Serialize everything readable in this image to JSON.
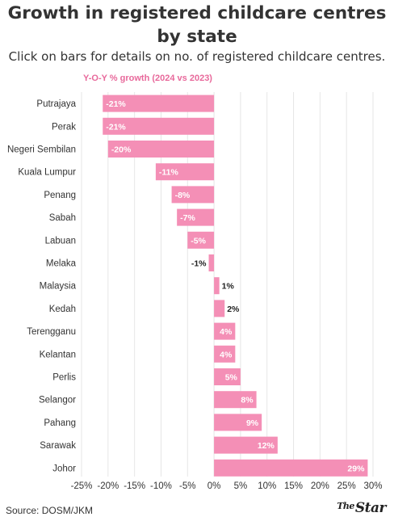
{
  "title": "Growth in registered childcare centres by state",
  "subtitle": "Click on bars for details on no. of registered childcare centres.",
  "source": "Source: DOSM/JKM",
  "brand": {
    "the": "The",
    "star": "Star"
  },
  "colors": {
    "bar": "#f48fb6",
    "legend": "#e8699b",
    "grid": "#e6e6e6"
  },
  "chart_data": {
    "type": "bar",
    "orientation": "horizontal",
    "legend": "Y-O-Y % growth (2024 vs 2023)",
    "categories": [
      "Putrajaya",
      "Perak",
      "Negeri Sembilan",
      "Kuala Lumpur",
      "Penang",
      "Sabah",
      "Labuan",
      "Melaka",
      "Malaysia",
      "Kedah",
      "Terengganu",
      "Kelantan",
      "Perlis",
      "Selangor",
      "Pahang",
      "Sarawak",
      "Johor"
    ],
    "values": [
      -21,
      -21,
      -20,
      -11,
      -8,
      -7,
      -5,
      -1,
      1,
      2,
      4,
      4,
      5,
      8,
      9,
      12,
      29
    ],
    "labels": [
      "-21%",
      "-21%",
      "-20%",
      "-11%",
      "-8%",
      "-7%",
      "-5%",
      "-1%",
      "1%",
      "2%",
      "4%",
      "4%",
      "5%",
      "8%",
      "9%",
      "12%",
      "29%"
    ],
    "xlim": [
      -25,
      30
    ],
    "ticks": [
      -25,
      -20,
      -15,
      -10,
      -5,
      0,
      5,
      10,
      15,
      20,
      25,
      30
    ],
    "tick_labels": [
      "-25%",
      "-20%",
      "-15%",
      "-10%",
      "-5%",
      "0%",
      "5%",
      "10%",
      "15%",
      "20%",
      "25%",
      "30%"
    ],
    "grid": true
  }
}
